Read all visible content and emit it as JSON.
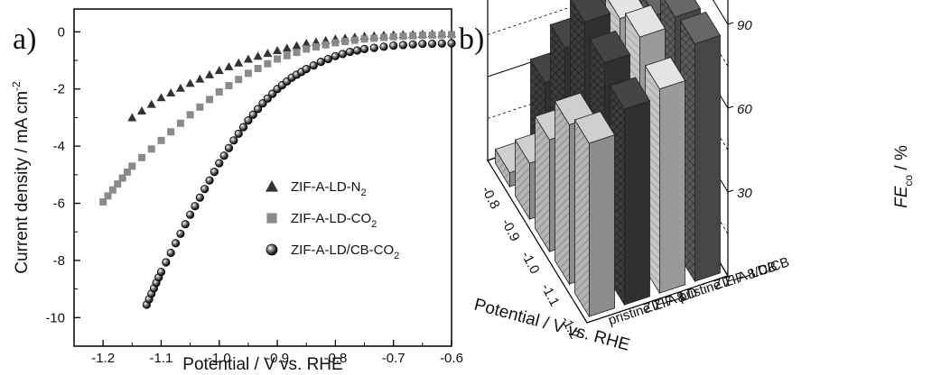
{
  "chart_data": [
    {
      "panel": "a)",
      "type": "scatter",
      "xlabel": "Potential / V vs. RHE",
      "ylabel_main": "Current density / mA cm",
      "ylabel_sup": "-2",
      "xlim": [
        -1.25,
        -0.6
      ],
      "ylim": [
        -11,
        0.8
      ],
      "xticks": [
        -1.2,
        -1.1,
        -1.0,
        -0.9,
        -0.8,
        -0.7,
        -0.6
      ],
      "xtick_labels": [
        "-1.2",
        "-1.1",
        "-1.0",
        "-0.9",
        "-0.8",
        "-0.7",
        "-0.6"
      ],
      "yticks": [
        0,
        -2,
        -4,
        -6,
        -8,
        -10
      ],
      "ytick_labels": [
        "0",
        "-2",
        "-4",
        "-6",
        "-8",
        "-10"
      ],
      "legend_placement": "lower-right",
      "series": [
        {
          "label_main": "ZIF-A-LD-N",
          "label_sub": "2",
          "marker": "triangle",
          "color": "#333333",
          "x": [
            -1.15,
            -1.1,
            -1.05,
            -1.0,
            -0.95,
            -0.9,
            -0.85,
            -0.8,
            -0.75,
            -0.7,
            -0.65,
            -0.6
          ],
          "y": [
            -3.0,
            -2.3,
            -1.8,
            -1.35,
            -0.95,
            -0.65,
            -0.4,
            -0.25,
            -0.15,
            -0.1,
            -0.08,
            -0.05
          ]
        },
        {
          "label_main": "ZIF-A-LD-CO",
          "label_sub": "2",
          "marker": "square",
          "color": "#8a8a8a",
          "x": [
            -1.2,
            -1.15,
            -1.1,
            -1.05,
            -1.0,
            -0.95,
            -0.9,
            -0.85,
            -0.8,
            -0.75,
            -0.7,
            -0.65,
            -0.6
          ],
          "y": [
            -5.95,
            -4.7,
            -3.8,
            -2.9,
            -2.1,
            -1.45,
            -0.95,
            -0.6,
            -0.38,
            -0.25,
            -0.17,
            -0.12,
            -0.1
          ]
        },
        {
          "label_main": "ZIF-A-LD/CB-CO",
          "label_sub": "2",
          "marker": "sphere",
          "color": "#111111",
          "x": [
            -1.125,
            -1.1,
            -1.075,
            -1.05,
            -1.025,
            -1.0,
            -0.975,
            -0.95,
            -0.925,
            -0.9,
            -0.875,
            -0.85,
            -0.825,
            -0.8,
            -0.775,
            -0.75,
            -0.7,
            -0.65,
            -0.6
          ],
          "y": [
            -9.55,
            -8.4,
            -7.4,
            -6.4,
            -5.5,
            -4.6,
            -3.8,
            -3.1,
            -2.5,
            -2.0,
            -1.6,
            -1.3,
            -1.05,
            -0.85,
            -0.7,
            -0.6,
            -0.48,
            -0.42,
            -0.4
          ]
        }
      ]
    },
    {
      "panel": "b)",
      "type": "bar",
      "subtype": "3d-bar",
      "xlabel": "Potential / V vs. RHE",
      "zlabel_main": "FE",
      "zlabel_sub": "co",
      "zlabel_unit": " / %",
      "zlim": [
        0,
        100
      ],
      "zticks": [
        30,
        60,
        90
      ],
      "categories": [
        "-1.2",
        "-1.1",
        "-1.0",
        "-0.9",
        "-0.8"
      ],
      "series": [
        {
          "name": "pristine ZIF-8",
          "pattern": "hatch-light",
          "values": [
            62,
            57,
            40,
            20,
            5
          ]
        },
        {
          "name": "ZIF-A-LD",
          "pattern": "cross-dark",
          "values": [
            70,
            75,
            78,
            57,
            33
          ]
        },
        {
          "name": "pristine ZIF-8/CB",
          "pattern": "hatch-light-alt",
          "values": [
            73,
            80,
            75,
            53,
            32
          ]
        },
        {
          "name": "ZIF-A-LD/CB",
          "pattern": "cross-dark-alt",
          "values": [
            85,
            83,
            72,
            65,
            48
          ]
        }
      ]
    }
  ]
}
